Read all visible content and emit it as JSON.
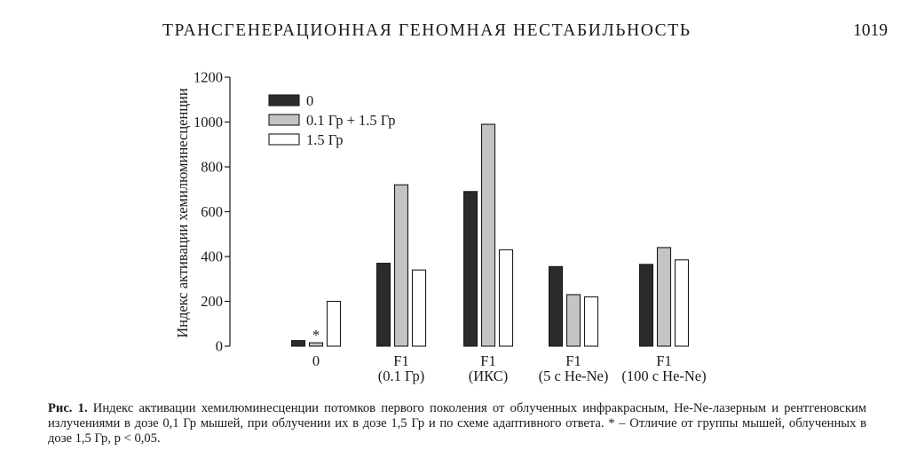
{
  "page": {
    "running_title": "ТРАНСГЕНЕРАЦИОННАЯ ГЕНОМНАЯ НЕСТАБИЛЬНОСТЬ",
    "page_number": "1019"
  },
  "caption": {
    "label": "Рис. 1.",
    "text": "Индекс активации хемилюминесценции потомков первого поколения от облученных инфракрасным, He-Ne-лазерным и рентгеновским излучениями в дозе 0,1 Гр мышей, при облучении их в дозе 1,5 Гр и по схеме адаптивного ответа. * – Отличие от группы мышей, облученных в дозе 1,5 Гр, p < 0,05."
  },
  "colors": {
    "series_0": "#2b2b2b",
    "series_1": "#c4c4c4",
    "series_2": "#ffffff",
    "stroke": "#1a1a1a"
  },
  "chart_data": {
    "type": "bar",
    "ylabel": "Индекс активации хемилюминесценции",
    "ylim": [
      0,
      1200
    ],
    "yticks": [
      "0",
      "200",
      "400",
      "600",
      "800",
      "1000",
      "1200"
    ],
    "categories": [
      [
        "0"
      ],
      [
        "F1",
        "(0.1 Гр)"
      ],
      [
        "F1",
        "(ИКС)"
      ],
      [
        "F1",
        "(5 с He-Ne)"
      ],
      [
        "F1",
        "(100 с He-Ne)"
      ]
    ],
    "series": [
      {
        "name": "0",
        "values": [
          25,
          370,
          690,
          355,
          365
        ]
      },
      {
        "name": "0.1 Гр + 1.5 Гр",
        "values": [
          15,
          720,
          990,
          230,
          440
        ]
      },
      {
        "name": "1.5 Гр",
        "values": [
          200,
          340,
          430,
          220,
          385
        ]
      }
    ],
    "annotations": [
      {
        "text": "*",
        "category": 0,
        "series": 1
      }
    ],
    "legend_position": "top-left"
  }
}
